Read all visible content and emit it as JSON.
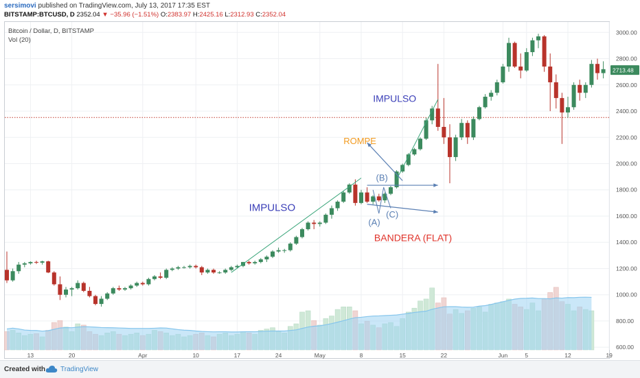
{
  "header": {
    "author": "sersimovi",
    "publish_text": "published on TradingView.com, July 13, 2017 17:35 EST",
    "symbol": "BITSTAMP:BTCUSD, D",
    "last": "2352.04",
    "change": "▼ −35.96 (−1.51%)",
    "open_label": "O:",
    "open": "2383.97",
    "high_label": "H:",
    "high": "2425.16",
    "low_label": "L:",
    "low": "2312.93",
    "close_label": "C:",
    "close": "2352.04"
  },
  "chart_title": "Bitcoin / Dollar, D, BITSTAMP",
  "volume_label": "Vol (20)",
  "colors": {
    "up": "#3c8a5e",
    "down": "#b8332b",
    "vol_up": "#cfe8d7",
    "vol_down": "#f0d5d3",
    "vol_band": "#9fd4f2",
    "vol_ma": "#85c5ec",
    "arrow": "#5a7fb3",
    "impulse_line": "#3aa57a",
    "hline": "#c0392b",
    "grid": "#eef0f3",
    "price_tag": "#3c8a5e"
  },
  "footer": {
    "created_with": "Created with",
    "brand": "TradingView",
    "logo_icon": "tradingview-cloud-icon"
  },
  "chart_data": {
    "type": "candlestick",
    "title": "Bitcoin / Dollar, D, BITSTAMP",
    "ylim": [
      580,
      3080
    ],
    "y_ticks": [
      600,
      800,
      1000,
      1200,
      1400,
      1600,
      1800,
      2000,
      2200,
      2400,
      2600,
      2800,
      3000
    ],
    "y_tick_labels": [
      "600.00",
      "800.00",
      "1000.00",
      "1200.00",
      "1400.00",
      "1600.00",
      "1800.00",
      "2000.00",
      "2200.00",
      "2400.00",
      "2600.00",
      "2800.00",
      "3000.00"
    ],
    "last_price_label": "2713.48",
    "horizontal_line_value": 2352,
    "x_axis": [
      {
        "label": "13",
        "date": "2017-03-13"
      },
      {
        "label": "20",
        "date": "2017-03-20"
      },
      {
        "label": "Apr",
        "date": "2017-04-01"
      },
      {
        "label": "10",
        "date": "2017-04-10"
      },
      {
        "label": "17",
        "date": "2017-04-17"
      },
      {
        "label": "24",
        "date": "2017-04-24"
      },
      {
        "label": "May",
        "date": "2017-05-01"
      },
      {
        "label": "8",
        "date": "2017-05-08"
      },
      {
        "label": "15",
        "date": "2017-05-15"
      },
      {
        "label": "22",
        "date": "2017-05-22"
      },
      {
        "label": "Jun",
        "date": "2017-06-01"
      },
      {
        "label": "5",
        "date": "2017-06-05"
      },
      {
        "label": "12",
        "date": "2017-06-12"
      },
      {
        "label": "19",
        "date": "2017-06-19"
      }
    ],
    "start_date": "2017-03-09",
    "candles": [
      [
        1190,
        1330,
        1090,
        1110
      ],
      [
        1110,
        1200,
        1100,
        1180
      ],
      [
        1180,
        1250,
        1160,
        1230
      ],
      [
        1230,
        1250,
        1210,
        1240
      ],
      [
        1240,
        1255,
        1230,
        1250
      ],
      [
        1250,
        1260,
        1235,
        1245
      ],
      [
        1245,
        1260,
        1230,
        1255
      ],
      [
        1255,
        1260,
        1165,
        1170
      ],
      [
        1170,
        1180,
        1070,
        1080
      ],
      [
        1080,
        1140,
        960,
        1000
      ],
      [
        1000,
        1060,
        980,
        1040
      ],
      [
        1040,
        1060,
        990,
        1050
      ],
      [
        1050,
        1110,
        1040,
        1090
      ],
      [
        1090,
        1100,
        1020,
        1030
      ],
      [
        1030,
        1060,
        980,
        990
      ],
      [
        990,
        1000,
        920,
        930
      ],
      [
        930,
        990,
        910,
        970
      ],
      [
        970,
        1020,
        960,
        1010
      ],
      [
        1010,
        1060,
        1000,
        1050
      ],
      [
        1050,
        1070,
        1030,
        1040
      ],
      [
        1040,
        1060,
        1030,
        1050
      ],
      [
        1050,
        1080,
        1040,
        1070
      ],
      [
        1070,
        1100,
        1060,
        1090
      ],
      [
        1090,
        1100,
        1070,
        1080
      ],
      [
        1080,
        1130,
        1070,
        1120
      ],
      [
        1120,
        1150,
        1110,
        1140
      ],
      [
        1140,
        1170,
        1120,
        1130
      ],
      [
        1130,
        1200,
        1120,
        1190
      ],
      [
        1190,
        1210,
        1180,
        1200
      ],
      [
        1200,
        1220,
        1190,
        1210
      ],
      [
        1210,
        1220,
        1200,
        1210
      ],
      [
        1210,
        1230,
        1200,
        1220
      ],
      [
        1220,
        1230,
        1200,
        1210
      ],
      [
        1210,
        1220,
        1150,
        1170
      ],
      [
        1170,
        1200,
        1160,
        1190
      ],
      [
        1190,
        1200,
        1160,
        1170
      ],
      [
        1170,
        1180,
        1160,
        1170
      ],
      [
        1170,
        1200,
        1160,
        1190
      ],
      [
        1190,
        1220,
        1180,
        1210
      ],
      [
        1210,
        1230,
        1200,
        1220
      ],
      [
        1220,
        1250,
        1210,
        1250
      ],
      [
        1250,
        1260,
        1230,
        1240
      ],
      [
        1240,
        1260,
        1230,
        1250
      ],
      [
        1250,
        1280,
        1240,
        1270
      ],
      [
        1270,
        1300,
        1250,
        1290
      ],
      [
        1290,
        1340,
        1280,
        1330
      ],
      [
        1330,
        1360,
        1320,
        1340
      ],
      [
        1340,
        1350,
        1320,
        1340
      ],
      [
        1340,
        1400,
        1330,
        1390
      ],
      [
        1390,
        1450,
        1380,
        1440
      ],
      [
        1440,
        1510,
        1430,
        1500
      ],
      [
        1500,
        1560,
        1490,
        1550
      ],
      [
        1550,
        1570,
        1500,
        1540
      ],
      [
        1540,
        1560,
        1520,
        1550
      ],
      [
        1550,
        1620,
        1540,
        1610
      ],
      [
        1610,
        1680,
        1580,
        1660
      ],
      [
        1660,
        1720,
        1640,
        1710
      ],
      [
        1710,
        1790,
        1700,
        1780
      ],
      [
        1780,
        1850,
        1770,
        1840
      ],
      [
        1840,
        1880,
        1680,
        1700
      ],
      [
        1700,
        1800,
        1690,
        1780
      ],
      [
        1780,
        1820,
        1700,
        1710
      ],
      [
        1710,
        1760,
        1690,
        1750
      ],
      [
        1750,
        1770,
        1710,
        1720
      ],
      [
        1720,
        1780,
        1700,
        1770
      ],
      [
        1770,
        1830,
        1760,
        1820
      ],
      [
        1820,
        1950,
        1810,
        1940
      ],
      [
        1940,
        2000,
        1930,
        1990
      ],
      [
        1990,
        2080,
        1980,
        2070
      ],
      [
        2070,
        2120,
        2060,
        2110
      ],
      [
        2110,
        2200,
        2100,
        2190
      ],
      [
        2190,
        2350,
        2180,
        2330
      ],
      [
        2330,
        2440,
        2300,
        2420
      ],
      [
        2420,
        2760,
        2250,
        2280
      ],
      [
        2280,
        2500,
        2150,
        2200
      ],
      [
        2200,
        2300,
        1850,
        2050
      ],
      [
        2050,
        2220,
        2020,
        2200
      ],
      [
        2200,
        2340,
        2180,
        2310
      ],
      [
        2310,
        2330,
        2150,
        2200
      ],
      [
        2200,
        2360,
        2180,
        2340
      ],
      [
        2340,
        2440,
        2330,
        2430
      ],
      [
        2430,
        2530,
        2420,
        2510
      ],
      [
        2510,
        2560,
        2480,
        2540
      ],
      [
        2540,
        2640,
        2520,
        2620
      ],
      [
        2620,
        2760,
        2610,
        2740
      ],
      [
        2740,
        2960,
        2700,
        2920
      ],
      [
        2920,
        2930,
        2730,
        2740
      ],
      [
        2740,
        2840,
        2650,
        2710
      ],
      [
        2710,
        2880,
        2700,
        2850
      ],
      [
        2850,
        2960,
        2820,
        2940
      ],
      [
        2940,
        2990,
        2880,
        2970
      ],
      [
        2970,
        2980,
        2700,
        2740
      ],
      [
        2740,
        2840,
        2400,
        2620
      ],
      [
        2620,
        2680,
        2420,
        2500
      ],
      [
        2500,
        2540,
        2150,
        2390
      ],
      [
        2390,
        2510,
        2350,
        2430
      ],
      [
        2430,
        2620,
        2410,
        2600
      ],
      [
        2600,
        2640,
        2480,
        2540
      ],
      [
        2540,
        2620,
        2500,
        2600
      ],
      [
        2600,
        2790,
        2580,
        2760
      ],
      [
        2760,
        2800,
        2640,
        2690
      ],
      [
        2690,
        2780,
        2650,
        2720
      ]
    ],
    "volumes": [
      {
        "values_note": "volume in relative units, 0-100"
      },
      28,
      30,
      26,
      22,
      24,
      25,
      20,
      30,
      42,
      45,
      35,
      28,
      40,
      38,
      28,
      24,
      22,
      26,
      28,
      24,
      22,
      24,
      26,
      22,
      24,
      30,
      28,
      26,
      22,
      24,
      20,
      22,
      24,
      26,
      22,
      20,
      24,
      26,
      22,
      24,
      28,
      26,
      24,
      30,
      32,
      34,
      28,
      26,
      36,
      40,
      58,
      60,
      45,
      38,
      48,
      52,
      62,
      66,
      66,
      60,
      40,
      44,
      38,
      34,
      40,
      42,
      36,
      48,
      58,
      64,
      75,
      78,
      95,
      72,
      80,
      55,
      62,
      56,
      60,
      64,
      66,
      58,
      70,
      72,
      74,
      78,
      70,
      66,
      62,
      72,
      60,
      78,
      88,
      96,
      74,
      70,
      60,
      66,
      62,
      60
    ],
    "annotations": [
      {
        "text": "IMPULSO",
        "color": "#3b3fb8"
      },
      {
        "text": "ROMPE",
        "color": "#f29a1f"
      },
      {
        "text": "IMPULSO",
        "color": "#3b3fb8"
      },
      {
        "text": "(B)",
        "color": "#5a7fb3"
      },
      {
        "text": "(A)",
        "color": "#5a7fb3"
      },
      {
        "text": "(C)",
        "color": "#5a7fb3"
      },
      {
        "text": "BANDERA (FLAT)",
        "color": "#e0342b"
      }
    ]
  }
}
